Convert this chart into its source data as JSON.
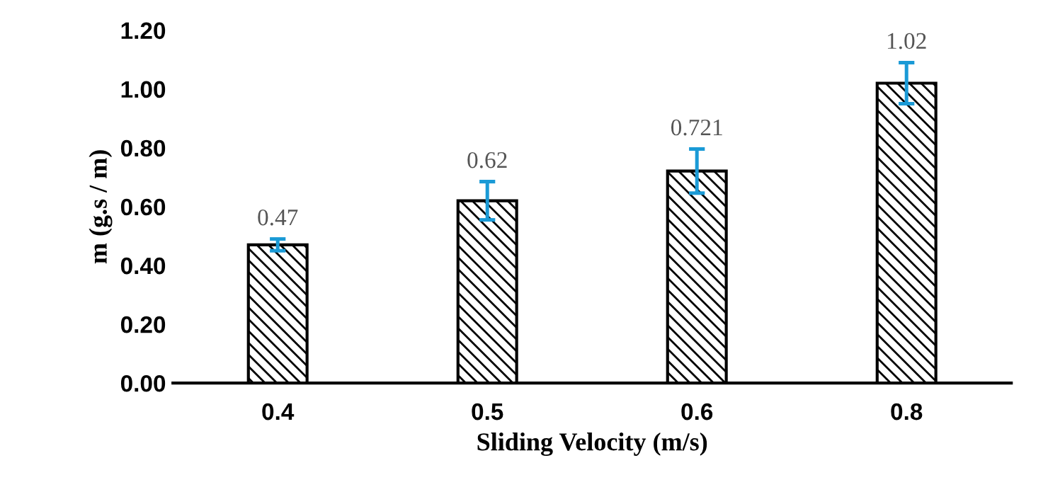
{
  "chart_data": {
    "type": "bar",
    "xlabel": "Sliding Velocity (m/s)",
    "ylabel": "m (g.s / m)",
    "categories": [
      "0.4",
      "0.5",
      "0.6",
      "0.8"
    ],
    "values": [
      0.47,
      0.62,
      0.721,
      1.02
    ],
    "errors": [
      0.02,
      0.065,
      0.075,
      0.07
    ],
    "color": "#000000",
    "data_labels": true,
    "ylim": [
      0,
      1.2
    ],
    "yticks": [
      {
        "value": 0,
        "label": "0.00"
      },
      {
        "value": 0.2,
        "label": "0.20"
      },
      {
        "value": 0.4,
        "label": "0.40"
      },
      {
        "value": 0.6,
        "label": "0.60"
      },
      {
        "value": 0.8,
        "label": "0.80"
      },
      {
        "value": 1.0,
        "label": "1.00"
      },
      {
        "value": 1.2,
        "label": "1.20"
      }
    ],
    "grid": false
  }
}
